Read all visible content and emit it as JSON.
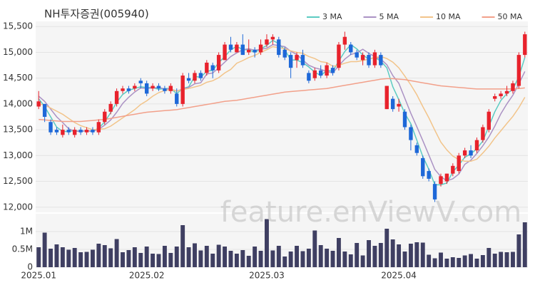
{
  "chart_data": [
    {
      "type": "candlestick",
      "title": "NH투자증권(005940)",
      "watermark": "feature.enViewV.com",
      "categories": [
        "2025.01",
        null,
        null,
        null,
        null,
        null,
        null,
        null,
        null,
        null,
        null,
        null,
        null,
        null,
        null,
        null,
        null,
        null,
        "2025.02",
        null,
        null,
        null,
        null,
        null,
        null,
        null,
        null,
        null,
        null,
        null,
        null,
        null,
        null,
        null,
        null,
        null,
        null,
        null,
        "2025.03",
        null,
        null,
        null,
        null,
        null,
        null,
        null,
        null,
        null,
        null,
        null,
        null,
        null,
        null,
        null,
        null,
        null,
        null,
        null,
        null,
        null,
        "2025.04",
        null,
        null,
        null,
        null,
        null,
        null,
        null,
        null,
        null,
        null,
        null,
        null,
        null,
        null,
        null,
        null,
        null,
        null,
        null,
        null,
        null
      ],
      "open": [
        13950,
        14000,
        13650,
        13500,
        13400,
        13500,
        13400,
        13500,
        13450,
        13500,
        13450,
        13650,
        13850,
        14000,
        14250,
        14300,
        14300,
        14450,
        14400,
        14300,
        14350,
        14300,
        14250,
        14200,
        14000,
        14500,
        14450,
        14600,
        14600,
        14750,
        14650,
        14850,
        15150,
        15000,
        15150,
        15000,
        15050,
        15000,
        15150,
        15250,
        15250,
        15050,
        14950,
        14850,
        14950,
        14600,
        14500,
        14650,
        14550,
        14700,
        14700,
        15150,
        15150,
        15000,
        14850,
        14950,
        14750,
        14950,
        13900,
        14100,
        13950,
        13850,
        13550,
        13200,
        12950,
        12700,
        12450,
        12450,
        12500,
        12650,
        12700,
        13000,
        13100,
        13100,
        13300,
        13500,
        14100,
        14150,
        14200,
        14250,
        14350,
        14950
      ],
      "high": [
        14250,
        14000,
        13700,
        13550,
        13600,
        13550,
        13550,
        13550,
        13550,
        13550,
        13700,
        13900,
        14050,
        14300,
        14350,
        14350,
        14400,
        14500,
        14450,
        14400,
        14400,
        14350,
        14400,
        14300,
        14600,
        14600,
        14650,
        14650,
        14850,
        14800,
        15000,
        15200,
        15300,
        15200,
        15350,
        15250,
        15100,
        15250,
        15350,
        15350,
        15300,
        15100,
        15000,
        15000,
        15050,
        14650,
        14700,
        14750,
        14800,
        14750,
        15200,
        15400,
        15200,
        15050,
        15000,
        15000,
        15050,
        15000,
        14350,
        14150,
        14100,
        13900,
        13600,
        13250,
        13000,
        12750,
        12500,
        12650,
        12650,
        12850,
        13050,
        13150,
        13200,
        13350,
        13600,
        13900,
        14200,
        14250,
        14350,
        14450,
        15000,
        15400
      ],
      "low": [
        13900,
        13650,
        13400,
        13400,
        13350,
        13400,
        13350,
        13400,
        13400,
        13400,
        13400,
        13600,
        13800,
        13950,
        14200,
        14200,
        14250,
        14300,
        14150,
        14250,
        14250,
        14200,
        14200,
        13950,
        13950,
        14400,
        14400,
        14450,
        14550,
        14500,
        14600,
        14850,
        15000,
        15000,
        14950,
        14950,
        14900,
        14950,
        15100,
        15150,
        14900,
        14850,
        14500,
        14700,
        14700,
        14400,
        14450,
        14500,
        14500,
        14550,
        14650,
        15050,
        14950,
        14850,
        14750,
        14700,
        14700,
        14700,
        13900,
        13850,
        13850,
        13500,
        13100,
        13000,
        12550,
        12500,
        12100,
        12400,
        12450,
        12600,
        12650,
        12950,
        12950,
        13050,
        13250,
        13450,
        14050,
        14100,
        14150,
        14200,
        14300,
        14900
      ],
      "close": [
        14050,
        13750,
        13450,
        13450,
        13500,
        13450,
        13500,
        13450,
        13500,
        13450,
        13650,
        13850,
        14000,
        14250,
        14300,
        14250,
        14350,
        14400,
        14200,
        14350,
        14300,
        14250,
        14350,
        14000,
        14550,
        14450,
        14600,
        14500,
        14800,
        14650,
        14950,
        15150,
        15050,
        15150,
        14950,
        15050,
        15000,
        15150,
        15250,
        15300,
        14950,
        14900,
        14700,
        14950,
        14750,
        14450,
        14650,
        14550,
        14750,
        14600,
        15150,
        15300,
        15000,
        14900,
        14950,
        14750,
        15000,
        14750,
        14350,
        13900,
        14000,
        13550,
        13300,
        13050,
        12600,
        12550,
        12150,
        12600,
        12650,
        12800,
        13000,
        13100,
        13000,
        13300,
        13550,
        13850,
        14150,
        14200,
        14250,
        14400,
        14950,
        15350
      ],
      "up_color": "#e8222c",
      "down_color": "#1e68d8",
      "series": [
        {
          "name": "3 MA",
          "color": "#5ccbc2",
          "values": [
            14100,
            13950,
            13750,
            13550,
            13467,
            13467,
            13483,
            13467,
            13483,
            13467,
            13533,
            13650,
            13833,
            14033,
            14183,
            14267,
            14300,
            14333,
            14317,
            14317,
            14283,
            14300,
            14300,
            14200,
            14300,
            14333,
            14533,
            14517,
            14633,
            14650,
            14800,
            14917,
            15050,
            15117,
            15050,
            15050,
            15000,
            15067,
            15133,
            15233,
            15167,
            15050,
            14850,
            14850,
            14800,
            14717,
            14617,
            14550,
            14650,
            14633,
            14833,
            15017,
            15150,
            15067,
            14950,
            14867,
            14900,
            14833,
            14700,
            14333,
            14083,
            13817,
            13617,
            13300,
            12983,
            12733,
            12433,
            12433,
            12467,
            12683,
            12817,
            12967,
            13033,
            13133,
            13283,
            13567,
            13850,
            14067,
            14200,
            14283,
            14533,
            14900
          ]
        },
        {
          "name": "5 MA",
          "color": "#ab92c4",
          "values": [
            14150,
            14050,
            13900,
            13750,
            13640,
            13520,
            13470,
            13470,
            13480,
            13470,
            13510,
            13590,
            13690,
            13840,
            14010,
            14130,
            14230,
            14310,
            14300,
            14310,
            14320,
            14290,
            14290,
            14250,
            14290,
            14320,
            14390,
            14410,
            14580,
            14600,
            14700,
            14810,
            14920,
            14990,
            15050,
            15070,
            15040,
            15060,
            15080,
            15150,
            15130,
            15110,
            15020,
            14960,
            14850,
            14750,
            14700,
            14670,
            14630,
            14600,
            14740,
            14870,
            14960,
            14990,
            15060,
            14980,
            14920,
            14870,
            14760,
            14550,
            14400,
            14110,
            13820,
            13560,
            13290,
            13010,
            12730,
            12590,
            12510,
            12550,
            12640,
            12830,
            12910,
            13040,
            13190,
            13360,
            13570,
            13810,
            14000,
            14170,
            14390,
            14630
          ]
        },
        {
          "name": "10 MA",
          "color": "#f2c48a",
          "values": [
            14000,
            13980,
            13920,
            13860,
            13800,
            13720,
            13640,
            13580,
            13540,
            13500,
            13510,
            13520,
            13570,
            13650,
            13730,
            13810,
            13890,
            13990,
            14060,
            14150,
            14220,
            14260,
            14280,
            14250,
            14280,
            14300,
            14330,
            14360,
            14420,
            14450,
            14510,
            14600,
            14670,
            14790,
            14840,
            14900,
            14940,
            15000,
            15050,
            15110,
            15090,
            15070,
            15030,
            15000,
            14980,
            14920,
            14880,
            14820,
            14800,
            14730,
            14750,
            14790,
            14820,
            14820,
            14840,
            14870,
            14900,
            14920,
            14880,
            14810,
            14700,
            14540,
            14370,
            14180,
            13950,
            13730,
            13490,
            13260,
            13110,
            12990,
            12920,
            12890,
            12890,
            12930,
            13050,
            13180,
            13340,
            13480,
            13620,
            13760,
            13930,
            14130
          ]
        },
        {
          "name": "50 MA",
          "color": "#f2a08a",
          "values": [
            13700,
            13690,
            13680,
            13670,
            13660,
            13660,
            13660,
            13660,
            13670,
            13680,
            13690,
            13700,
            13720,
            13740,
            13760,
            13780,
            13800,
            13820,
            13840,
            13850,
            13860,
            13870,
            13880,
            13890,
            13910,
            13930,
            13950,
            13970,
            13990,
            14010,
            14030,
            14050,
            14060,
            14070,
            14090,
            14110,
            14130,
            14150,
            14170,
            14190,
            14210,
            14230,
            14240,
            14250,
            14260,
            14270,
            14280,
            14290,
            14300,
            14320,
            14340,
            14360,
            14380,
            14400,
            14420,
            14440,
            14460,
            14480,
            14490,
            14490,
            14480,
            14470,
            14450,
            14430,
            14410,
            14390,
            14370,
            14350,
            14340,
            14330,
            14320,
            14310,
            14300,
            14290,
            14290,
            14290,
            14290,
            14290,
            14290,
            14290,
            14300,
            14310
          ]
        }
      ],
      "ylim": [
        11900,
        15600
      ],
      "yticks": [
        {
          "value": 12000,
          "label": "12,000"
        },
        {
          "value": 12500,
          "label": "12,500"
        },
        {
          "value": 13000,
          "label": "13,000"
        },
        {
          "value": 13500,
          "label": "13,500"
        },
        {
          "value": 14000,
          "label": "14,000"
        },
        {
          "value": 14500,
          "label": "14,500"
        },
        {
          "value": 15000,
          "label": "15,000"
        },
        {
          "value": 15500,
          "label": "15,500"
        }
      ],
      "grid": true,
      "legend": "top-right"
    },
    {
      "type": "bar",
      "color": "#3f3f62",
      "values": [
        560000,
        970000,
        520000,
        640000,
        560000,
        490000,
        540000,
        420000,
        430000,
        490000,
        660000,
        620000,
        530000,
        790000,
        420000,
        480000,
        560000,
        400000,
        580000,
        380000,
        370000,
        600000,
        400000,
        580000,
        1180000,
        560000,
        670000,
        470000,
        600000,
        380000,
        630000,
        580000,
        460000,
        380000,
        480000,
        320000,
        580000,
        460000,
        1350000,
        470000,
        600000,
        300000,
        440000,
        600000,
        450000,
        520000,
        1030000,
        620000,
        520000,
        460000,
        820000,
        440000,
        360000,
        680000,
        330000,
        760000,
        600000,
        680000,
        1080000,
        780000,
        640000,
        440000,
        660000,
        700000,
        690000,
        350000,
        250000,
        410000,
        240000,
        280000,
        260000,
        330000,
        370000,
        240000,
        340000,
        540000,
        380000,
        430000,
        420000,
        430000,
        920000,
        1260000
      ],
      "ylim": [
        0,
        1500000
      ],
      "yticks": [
        0,
        {
          "value": 500000,
          "label": "0.5M"
        },
        {
          "value": 1000000,
          "label": "1M"
        }
      ],
      "grid": true
    }
  ]
}
